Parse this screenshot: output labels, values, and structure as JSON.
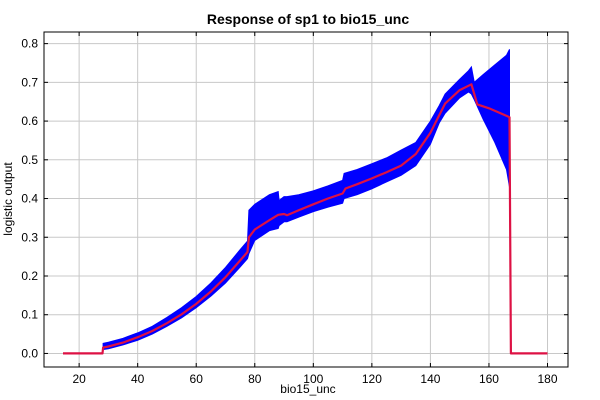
{
  "chart_data": {
    "type": "line",
    "title": "Response of sp1 to bio15_unc",
    "xlabel": "bio15_unc",
    "ylabel": "logistic output",
    "xlim": [
      8,
      187
    ],
    "ylim": [
      -0.035,
      0.83
    ],
    "x_ticks": [
      20,
      40,
      60,
      80,
      100,
      120,
      140,
      160,
      180
    ],
    "y_ticks": [
      0.0,
      0.1,
      0.2,
      0.3,
      0.4,
      0.5,
      0.6,
      0.7,
      0.8
    ],
    "x_tick_labels": [
      "20",
      "40",
      "60",
      "80",
      "100",
      "120",
      "140",
      "160",
      "180"
    ],
    "y_tick_labels": [
      "0.0",
      "0.1",
      "0.2",
      "0.3",
      "0.4",
      "0.5",
      "0.6",
      "0.7",
      "0.8"
    ],
    "grid": true,
    "colors": {
      "mean": "#dd1144",
      "band": "#0000ff"
    },
    "series": [
      {
        "x": [
          14.5,
          28,
          28.2,
          30,
          35,
          40,
          45,
          50,
          55,
          60,
          65,
          70,
          75,
          77.5,
          78,
          80,
          85,
          88,
          90,
          91,
          95,
          100,
          105,
          110,
          111,
          115,
          120,
          125,
          130,
          135,
          140,
          145,
          150,
          154,
          156,
          160,
          167,
          167.5,
          180
        ],
        "y": [
          0.0,
          0.0,
          0.015,
          0.018,
          0.028,
          0.042,
          0.058,
          0.078,
          0.101,
          0.128,
          0.16,
          0.197,
          0.24,
          0.262,
          0.3,
          0.32,
          0.344,
          0.358,
          0.36,
          0.357,
          0.37,
          0.385,
          0.4,
          0.413,
          0.426,
          0.437,
          0.452,
          0.468,
          0.485,
          0.515,
          0.57,
          0.645,
          0.68,
          0.695,
          0.643,
          0.633,
          0.61,
          0.0,
          0.0
        ]
      }
    ],
    "band": {
      "x": [
        28.2,
        30,
        35,
        40,
        45,
        50,
        55,
        60,
        65,
        70,
        75,
        77.5,
        78,
        80,
        85,
        88,
        88.3,
        90,
        91,
        95,
        100,
        105,
        110,
        110.5,
        115,
        120,
        125,
        130,
        135,
        140,
        143,
        145,
        150,
        153,
        154,
        155,
        158,
        162,
        166,
        167
      ],
      "low": [
        0.01,
        0.012,
        0.022,
        0.034,
        0.05,
        0.07,
        0.092,
        0.118,
        0.148,
        0.182,
        0.223,
        0.245,
        0.258,
        0.292,
        0.317,
        0.323,
        0.33,
        0.34,
        0.34,
        0.352,
        0.366,
        0.378,
        0.388,
        0.4,
        0.41,
        0.425,
        0.443,
        0.46,
        0.485,
        0.54,
        0.595,
        0.62,
        0.66,
        0.675,
        0.67,
        0.655,
        0.605,
        0.545,
        0.475,
        0.43
      ],
      "high": [
        0.026,
        0.029,
        0.039,
        0.053,
        0.07,
        0.093,
        0.118,
        0.147,
        0.182,
        0.222,
        0.268,
        0.29,
        0.37,
        0.385,
        0.41,
        0.418,
        0.395,
        0.405,
        0.405,
        0.41,
        0.42,
        0.433,
        0.447,
        0.465,
        0.475,
        0.49,
        0.505,
        0.525,
        0.545,
        0.6,
        0.64,
        0.67,
        0.708,
        0.73,
        0.74,
        0.7,
        0.72,
        0.745,
        0.77,
        0.785
      ]
    }
  }
}
